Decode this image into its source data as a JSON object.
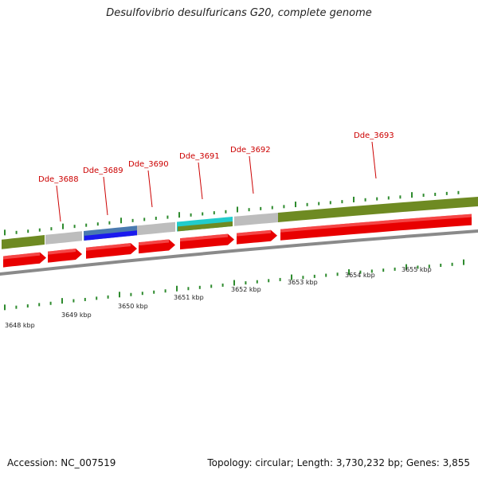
{
  "title": "Desulfovibrio desulfuricans G20, complete genome",
  "footer": {
    "accession": "Accession: NC_007519",
    "summary": "Topology: circular; Length: 3,730,232 bp; Genes: 3,855"
  },
  "colors": {
    "cds": "#e80000",
    "cds_highlight": "#ff8080",
    "olive": "#6e8a22",
    "grey": "#bdbdbd",
    "blue": "#1a1aee",
    "steel": "#4a7ab0",
    "cyan": "#22cccc",
    "backbone": "#8a8a8a",
    "tick": "#2e8b2e",
    "label": "#cc0000"
  },
  "gene_labels": [
    {
      "id": "Dde_3688",
      "text": "Dde_3688"
    },
    {
      "id": "Dde_3689",
      "text": "Dde_3689"
    },
    {
      "id": "Dde_3690",
      "text": "Dde_3690"
    },
    {
      "id": "Dde_3691",
      "text": "Dde_3691"
    },
    {
      "id": "Dde_3692",
      "text": "Dde_3692"
    },
    {
      "id": "Dde_3693",
      "text": "Dde_3693"
    }
  ],
  "scale_labels": [
    "3648 kbp",
    "3649 kbp",
    "3650 kbp",
    "3651 kbp",
    "3652 kbp",
    "3653 kbp",
    "3654 kbp",
    "3655 kbp"
  ]
}
